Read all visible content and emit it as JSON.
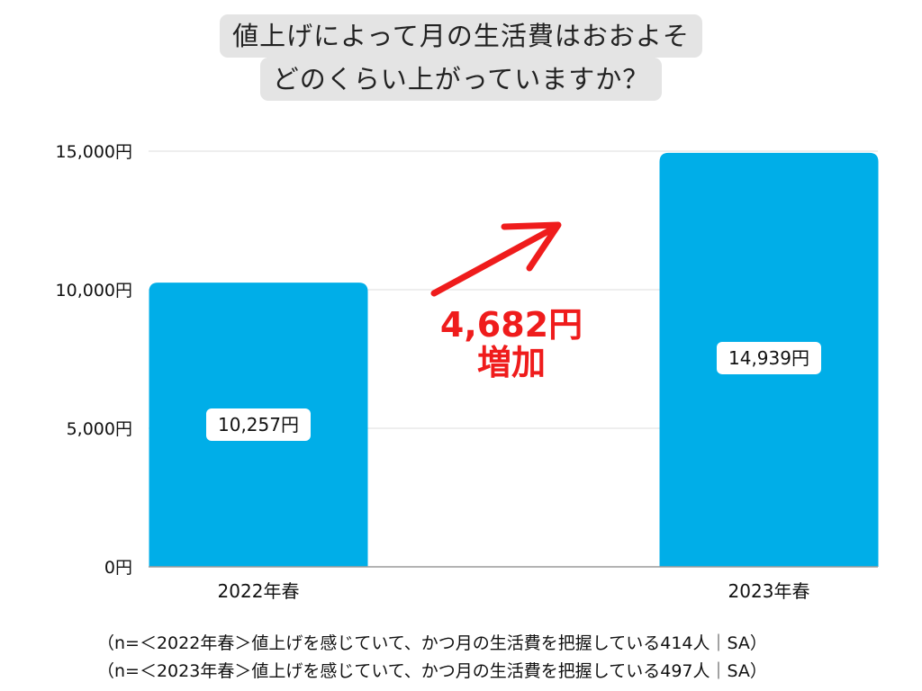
{
  "title": {
    "line1": "値上げによって月の生活費はおおよそ",
    "line2": "どのくらい上がっていますか？"
  },
  "annotation": {
    "increase_value": "4,682円",
    "increase_label": "増加",
    "arrow_color": "#ef1c1c"
  },
  "footnotes": [
    "（n=＜2022年春＞値上げを感じていて、かつ月の生活費を把握している414人｜SA）",
    "（n=＜2023年春＞値上げを感じていて、かつ月の生活費を把握している497人｜SA）"
  ],
  "chart_data": {
    "type": "bar",
    "categories": [
      "2022年春",
      "2023年春"
    ],
    "values": [
      10257,
      14939
    ],
    "value_labels": [
      "10,257円",
      "14,939円"
    ],
    "ylim": [
      0,
      15000
    ],
    "yticks": [
      0,
      5000,
      10000,
      15000
    ],
    "ytick_labels": [
      "0円",
      "5,000円",
      "10,000円",
      "15,000円"
    ],
    "bar_color": "#00aee8",
    "grid": true
  }
}
